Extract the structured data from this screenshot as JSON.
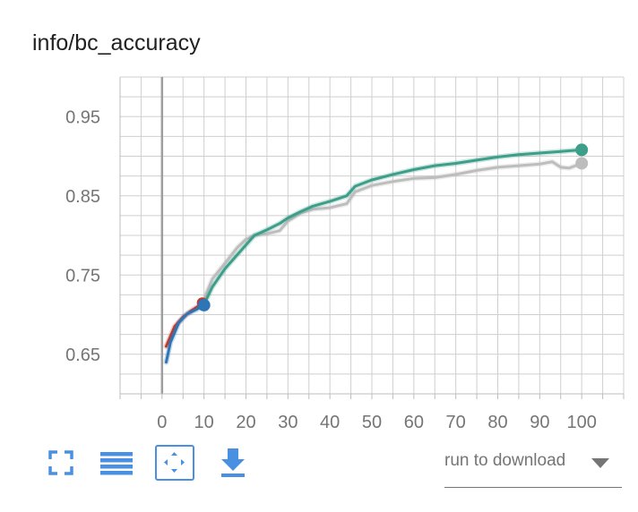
{
  "title": "info/bc_accuracy",
  "colors": {
    "grid": "#cfcfcf",
    "zero_line": "#9e9e9e",
    "icon_blue": "#4a90e2"
  },
  "toolbar": {
    "icons": [
      "fullscreen-icon",
      "data-table-icon",
      "fit-domain-icon",
      "download-icon"
    ]
  },
  "run_select": {
    "label": "run to download"
  },
  "chart_data": {
    "type": "line",
    "title": "info/bc_accuracy",
    "xlabel": "",
    "ylabel": "",
    "xlim": [
      -10,
      110
    ],
    "ylim": [
      0.6,
      1.0
    ],
    "x_ticks": [
      0,
      10,
      20,
      30,
      40,
      50,
      60,
      70,
      80,
      90,
      100
    ],
    "y_ticks": [
      0.65,
      0.75,
      0.85,
      0.95
    ],
    "grid": true,
    "series": [
      {
        "color": "#c0392b",
        "x": [
          1,
          3,
          5,
          7,
          9,
          10
        ],
        "y": [
          0.66,
          0.685,
          0.697,
          0.705,
          0.712,
          0.715
        ]
      },
      {
        "color": "#2e75b6",
        "x": [
          1,
          2,
          4,
          6,
          8,
          10
        ],
        "y": [
          0.64,
          0.665,
          0.69,
          0.701,
          0.706,
          0.712
        ]
      },
      {
        "color": "#bdbdbd",
        "marker_at_end": true,
        "x": [
          10,
          12,
          15,
          18,
          20,
          22,
          25,
          28,
          30,
          33,
          36,
          40,
          44,
          46,
          50,
          55,
          60,
          65,
          70,
          75,
          80,
          85,
          90,
          93,
          95,
          97,
          100
        ],
        "y": [
          0.72,
          0.745,
          0.765,
          0.785,
          0.795,
          0.8,
          0.802,
          0.806,
          0.818,
          0.828,
          0.833,
          0.835,
          0.84,
          0.855,
          0.863,
          0.868,
          0.872,
          0.873,
          0.877,
          0.882,
          0.886,
          0.888,
          0.89,
          0.893,
          0.886,
          0.885,
          0.891
        ]
      },
      {
        "color": "#3d9e8a",
        "marker_at_end": true,
        "x": [
          10,
          12,
          15,
          18,
          20,
          22,
          25,
          28,
          30,
          33,
          36,
          40,
          44,
          46,
          50,
          55,
          60,
          65,
          70,
          75,
          80,
          85,
          90,
          95,
          100
        ],
        "y": [
          0.713,
          0.735,
          0.758,
          0.776,
          0.788,
          0.8,
          0.807,
          0.815,
          0.822,
          0.83,
          0.837,
          0.843,
          0.85,
          0.862,
          0.87,
          0.877,
          0.883,
          0.888,
          0.891,
          0.895,
          0.899,
          0.902,
          0.904,
          0.906,
          0.908
        ]
      }
    ]
  }
}
